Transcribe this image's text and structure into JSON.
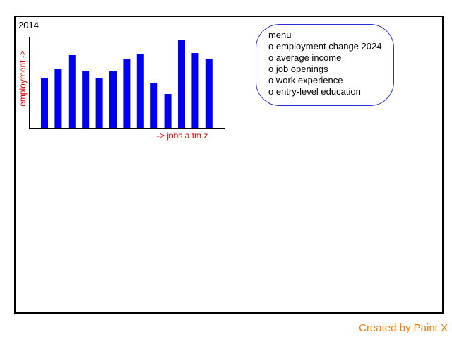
{
  "canvas": {
    "year_label": "2014"
  },
  "chart_data": {
    "type": "bar",
    "categories": [
      "",
      "",
      "",
      "",
      "",
      "",
      "",
      "",
      "",
      "",
      "",
      "",
      ""
    ],
    "values": [
      71,
      85,
      104,
      82,
      72,
      81,
      98,
      106,
      65,
      49,
      125,
      107,
      99
    ],
    "ylabel": "employment ->",
    "xlabel": "-> jobs a tm z",
    "ylim": [
      0,
      130
    ],
    "grid": false,
    "bar_color": "#0000ee",
    "axis_color": "#000000",
    "label_color": "#e00000"
  },
  "menu": {
    "title": "menu",
    "items": [
      "o employment change 2024",
      "o average income",
      "o job openings",
      "o work experience",
      "o entry-level education"
    ],
    "border_color": "#2a2ad8"
  },
  "footer": {
    "credit": "Created by Paint X",
    "credit_color": "#ff7700"
  }
}
